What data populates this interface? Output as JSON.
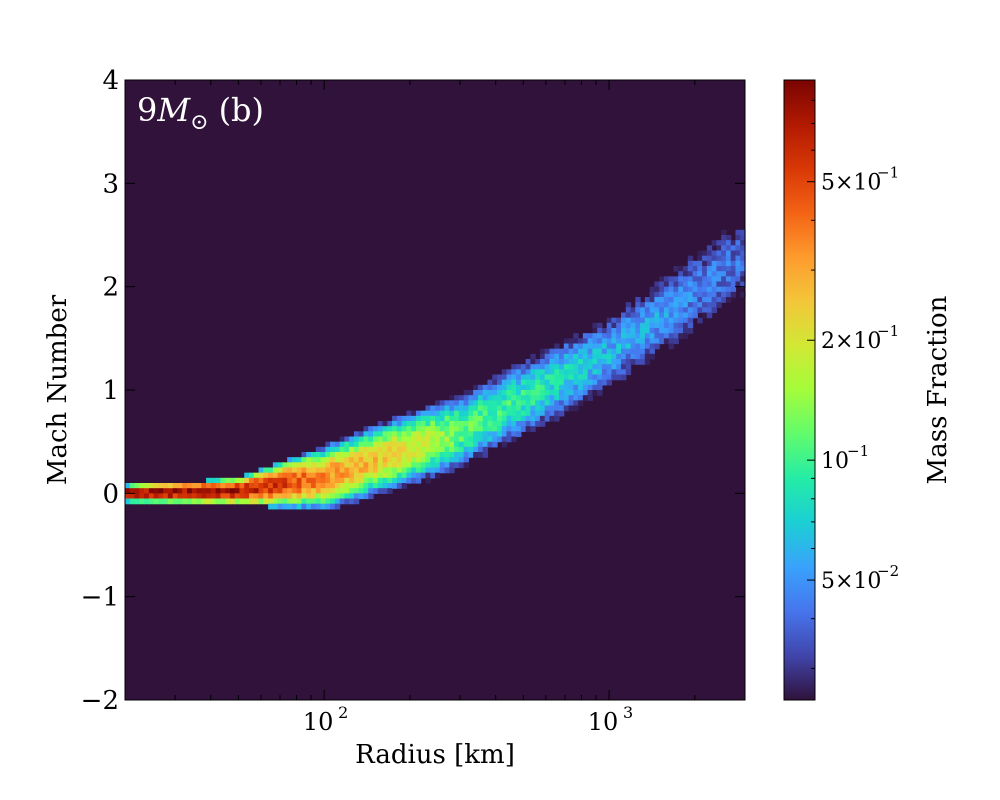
{
  "chart_data": {
    "type": "heatmap",
    "panel_label": "9M_⊙ (b)",
    "panel_label_parts": {
      "number": "9",
      "symbol": "M",
      "subscript": "⊙",
      "suffix": "(b)"
    },
    "xlabel": "Radius [km]",
    "ylabel": "Mach Number",
    "colorbar_label": "Mass Fraction",
    "x_scale": "log",
    "xlim": [
      20,
      3000
    ],
    "ylim": [
      -2,
      4
    ],
    "x_ticks": [
      {
        "value": 100,
        "base": "10",
        "exp": "2"
      },
      {
        "value": 1000,
        "base": "10",
        "exp": "3"
      }
    ],
    "y_ticks": [
      {
        "value": -2,
        "label": "−2"
      },
      {
        "value": -1,
        "label": "−1"
      },
      {
        "value": 0,
        "label": "0"
      },
      {
        "value": 1,
        "label": "1"
      },
      {
        "value": 2,
        "label": "2"
      },
      {
        "value": 3,
        "label": "3"
      },
      {
        "value": 4,
        "label": "4"
      }
    ],
    "colorbar": {
      "scale": "log",
      "range": [
        0.025,
        0.9
      ],
      "ticks": [
        {
          "value": 0.5,
          "mant": "5×10",
          "exp": "−1"
        },
        {
          "value": 0.2,
          "mant": "2×10",
          "exp": "−1"
        },
        {
          "value": 0.1,
          "mant": "10",
          "exp": "−1"
        },
        {
          "value": 0.05,
          "mant": "5×10",
          "exp": "−2"
        }
      ]
    },
    "colormap": [
      "#30123b",
      "#4145ab",
      "#4675ed",
      "#39a2fc",
      "#1bcfd4",
      "#24eca6",
      "#61fc6c",
      "#a4fc3b",
      "#d1e834",
      "#f3c63a",
      "#fe9b2d",
      "#f36315",
      "#d93806",
      "#b11901",
      "#7a0402"
    ],
    "background_color": "#30123b",
    "distribution": {
      "description_points_radius_km": [
        20,
        50,
        100,
        300,
        1000,
        3000
      ],
      "center_mach": [
        0,
        0.02,
        0.15,
        0.6,
        1.35,
        2.3
      ],
      "half_width_mach": [
        0.06,
        0.1,
        0.25,
        0.35,
        0.45,
        0.6
      ],
      "peak_mass_fraction": [
        0.9,
        0.75,
        0.35,
        0.12,
        0.06,
        0.04
      ]
    }
  }
}
